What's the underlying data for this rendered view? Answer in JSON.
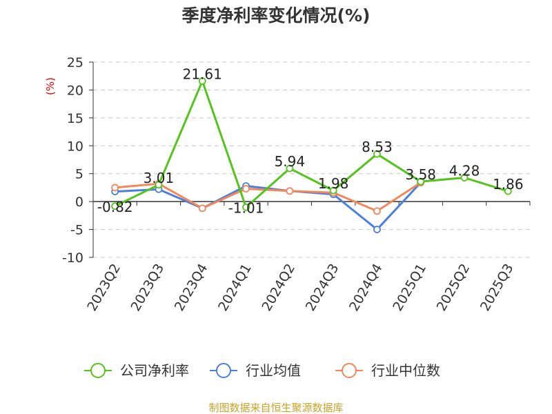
{
  "chart_data": {
    "type": "line",
    "title": "季度净利率变化情况(%)",
    "ylabel": "(%)",
    "ylim": [
      -10,
      25
    ],
    "yticks": [
      25,
      20,
      15,
      10,
      5,
      0,
      -5,
      -10
    ],
    "grid": true,
    "legend_position": "bottom",
    "categories": [
      "2023Q2",
      "2023Q3",
      "2023Q4",
      "2024Q1",
      "2024Q2",
      "2024Q3",
      "2024Q4",
      "2025Q1",
      "2025Q2",
      "2025Q3"
    ],
    "series": [
      {
        "name": "公司净利率",
        "color": "#52c41a",
        "values": [
          -0.82,
          3.01,
          21.61,
          -1.01,
          5.94,
          1.98,
          8.53,
          3.58,
          4.28,
          1.86
        ],
        "labels": [
          "-0.82",
          "3.01",
          "21.61",
          "-1.01",
          "5.94",
          "1.98",
          "8.53",
          "3.58",
          "4.28",
          "1.86"
        ]
      },
      {
        "name": "行业均值",
        "color": "#4a7fe0",
        "values": [
          1.8,
          2.2,
          -1.2,
          2.8,
          1.9,
          1.3,
          -5.0,
          3.4,
          null,
          null
        ]
      },
      {
        "name": "行业中位数",
        "color": "#f4875a",
        "values": [
          2.5,
          3.2,
          -1.2,
          2.3,
          1.9,
          1.6,
          -1.7,
          3.4,
          null,
          null
        ]
      }
    ]
  },
  "source_note": "制图数据来自恒生聚源数据库"
}
